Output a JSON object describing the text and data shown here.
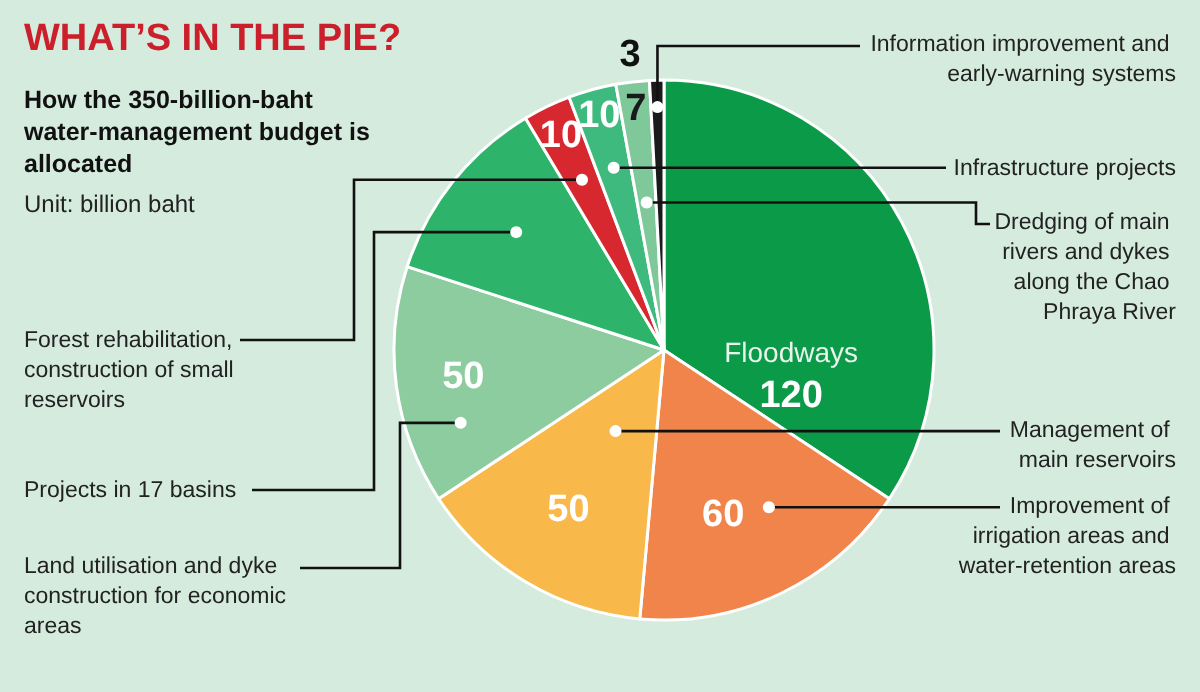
{
  "chart_data": {
    "type": "pie",
    "title": "WHAT’S IN THE PIE?",
    "subtitle": "How the 350-billion-baht water-management budget is allocated",
    "annotations": [
      "Unit: billion baht"
    ],
    "categories": [
      "Floodways",
      "Improvement of irrigation areas and water-retention areas",
      "Management of main reservoirs",
      "Land utilisation and dyke construction for economic areas",
      "Projects in 17 basins",
      "Forest rehabilitation, construction of small reservoirs",
      "Infrastructure projects",
      "Dredging of main rivers and dykes along the Chao Phraya River",
      "Information improvement and early-warning systems"
    ],
    "values": [
      120,
      60,
      50,
      50,
      40,
      10,
      10,
      7,
      3
    ],
    "colors": [
      "#0a9a48",
      "#f0844a",
      "#f9b84a",
      "#8ccc9f",
      "#2db36a",
      "#d7282f",
      "#3fba7e",
      "#7fc89a",
      "#1a1a1a"
    ],
    "value_labels": [
      "120",
      "60",
      "50",
      "50",
      null,
      "10",
      "10",
      "7",
      "3"
    ]
  }
}
